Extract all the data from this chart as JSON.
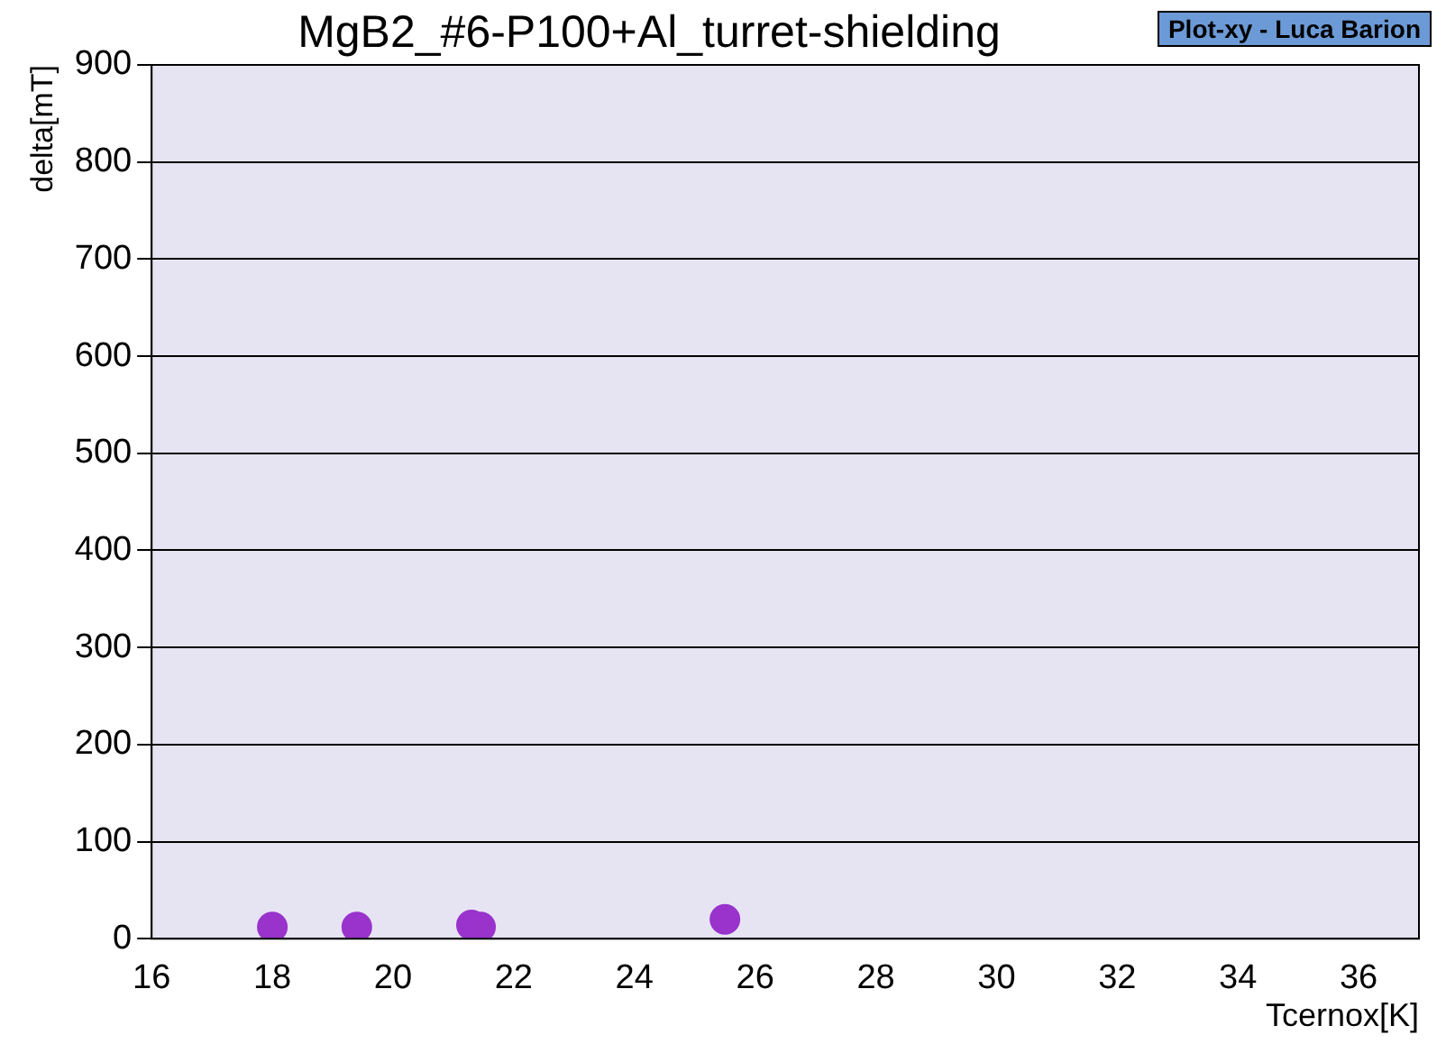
{
  "chart_data": {
    "type": "scatter",
    "title": "MgB2_#6-P100+Al_turret-shielding",
    "xlabel": "Tcernox[K]",
    "ylabel": "delta[mT]",
    "annotations": [
      "Plot-xy - Luca Barion"
    ],
    "x": [
      18.0,
      19.4,
      21.3,
      21.45,
      25.5
    ],
    "series": [
      {
        "color": "#9933cc",
        "values": [
          12,
          12,
          14,
          12,
          20
        ]
      }
    ],
    "xlim": [
      16,
      37
    ],
    "xticks": [
      16,
      18,
      20,
      22,
      24,
      26,
      28,
      30,
      32,
      34,
      36
    ],
    "ylim": [
      0,
      900
    ],
    "yticks": [
      0,
      100,
      200,
      300,
      400,
      500,
      600,
      700,
      800,
      900
    ],
    "grid": "y",
    "legend": false,
    "marker": "circle"
  }
}
